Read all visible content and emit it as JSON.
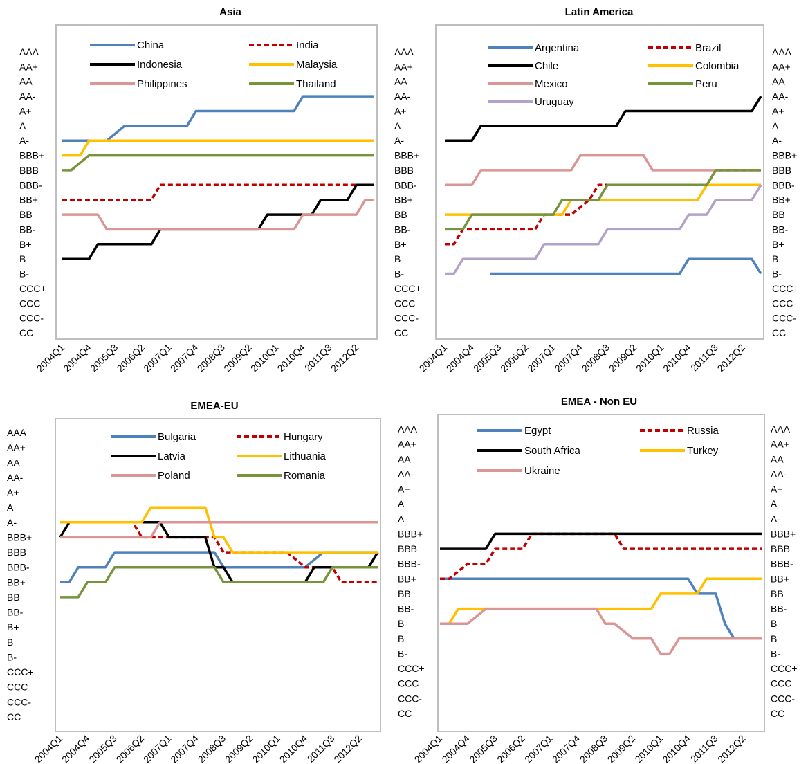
{
  "figure": {
    "rating_scale": [
      "AAA",
      "AA+",
      "AA",
      "AA-",
      "A+",
      "A",
      "A-",
      "BBB+",
      "BBB",
      "BBB-",
      "BB+",
      "BB",
      "BB-",
      "B+",
      "B",
      "B-",
      "CCC+",
      "CCC",
      "CCC-",
      "CC"
    ],
    "x_tick_labels": [
      "2004Q1",
      "2004Q4",
      "2005Q3",
      "2006Q2",
      "2007Q1",
      "2007Q4",
      "2008Q3",
      "2009Q2",
      "2010Q1",
      "2010Q4",
      "2011Q3",
      "2012Q2"
    ]
  },
  "chart_data": [
    {
      "type": "line",
      "title": "Asia",
      "x_start": "2004Q1",
      "x_end": "2012Q4",
      "y_axis": "rating (AAA top, CC bottom)",
      "y_tick_side": "left",
      "legend_columns": 2,
      "series": [
        {
          "name": "China",
          "color": "#4f81bd",
          "dash": "solid",
          "points": [
            [
              "2004Q1",
              "A-"
            ],
            [
              "2005Q2",
              "A-"
            ],
            [
              "2005Q4",
              "A"
            ],
            [
              "2007Q3",
              "A"
            ],
            [
              "2007Q4",
              "A+"
            ],
            [
              "2010Q3",
              "A+"
            ],
            [
              "2010Q4",
              "AA-"
            ],
            [
              "2012Q4",
              "AA-"
            ]
          ]
        },
        {
          "name": "India",
          "color": "#c00000",
          "dash": "dashed",
          "points": [
            [
              "2004Q1",
              "BB+"
            ],
            [
              "2006Q3",
              "BB+"
            ],
            [
              "2006Q4",
              "BBB-"
            ],
            [
              "2012Q4",
              "BBB-"
            ]
          ]
        },
        {
          "name": "Indonesia",
          "color": "#000000",
          "dash": "solid",
          "points": [
            [
              "2004Q1",
              "B"
            ],
            [
              "2004Q4",
              "B"
            ],
            [
              "2005Q1",
              "B+"
            ],
            [
              "2006Q3",
              "B+"
            ],
            [
              "2006Q4",
              "BB-"
            ],
            [
              "2009Q3",
              "BB-"
            ],
            [
              "2009Q4",
              "BB"
            ],
            [
              "2011Q1",
              "BB"
            ],
            [
              "2011Q2",
              "BB+"
            ],
            [
              "2012Q1",
              "BB+"
            ],
            [
              "2012Q2",
              "BBB-"
            ],
            [
              "2012Q4",
              "BBB-"
            ]
          ]
        },
        {
          "name": "Malaysia",
          "color": "#ffc000",
          "dash": "solid",
          "points": [
            [
              "2004Q1",
              "BBB+"
            ],
            [
              "2004Q3",
              "BBB+"
            ],
            [
              "2004Q4",
              "A-"
            ],
            [
              "2012Q4",
              "A-"
            ]
          ]
        },
        {
          "name": "Philippines",
          "color": "#d99694",
          "dash": "solid",
          "points": [
            [
              "2004Q1",
              "BB"
            ],
            [
              "2005Q1",
              "BB"
            ],
            [
              "2005Q2",
              "BB-"
            ],
            [
              "2010Q3",
              "BB-"
            ],
            [
              "2010Q4",
              "BB"
            ],
            [
              "2012Q2",
              "BB"
            ],
            [
              "2012Q3",
              "BB+"
            ],
            [
              "2012Q4",
              "BB+"
            ]
          ]
        },
        {
          "name": "Thailand",
          "color": "#77933c",
          "dash": "solid",
          "points": [
            [
              "2004Q1",
              "BBB"
            ],
            [
              "2004Q2",
              "BBB"
            ],
            [
              "2004Q4",
              "BBB+"
            ],
            [
              "2012Q4",
              "BBB+"
            ]
          ]
        }
      ]
    },
    {
      "type": "line",
      "title": "Latin America",
      "x_start": "2004Q1",
      "x_end": "2012Q4",
      "y_axis": "rating (AAA top, CC bottom)",
      "y_tick_side": "both",
      "legend_columns": 2,
      "series": [
        {
          "name": "Argentina",
          "color": "#4f81bd",
          "dash": "solid",
          "points": [
            [
              "2005Q2",
              "B-"
            ],
            [
              "2010Q3",
              "B-"
            ],
            [
              "2010Q4",
              "B"
            ],
            [
              "2012Q3",
              "B"
            ],
            [
              "2012Q4",
              "B-"
            ]
          ]
        },
        {
          "name": "Brazil",
          "color": "#c00000",
          "dash": "dashed",
          "points": [
            [
              "2004Q1",
              "B+"
            ],
            [
              "2004Q2",
              "B+"
            ],
            [
              "2004Q3",
              "BB-"
            ],
            [
              "2006Q3",
              "BB-"
            ],
            [
              "2006Q4",
              "BB"
            ],
            [
              "2007Q2",
              "BB"
            ],
            [
              "2007Q3",
              "BB"
            ],
            [
              "2008Q1",
              "BB+"
            ],
            [
              "2008Q2",
              "BBB-"
            ],
            [
              "2011Q2",
              "BBB-"
            ],
            [
              "2011Q3",
              "BBB"
            ],
            [
              "2012Q4",
              "BBB"
            ]
          ]
        },
        {
          "name": "Chile",
          "color": "#000000",
          "dash": "solid",
          "points": [
            [
              "2004Q1",
              "A-"
            ],
            [
              "2004Q4",
              "A-"
            ],
            [
              "2005Q1",
              "A"
            ],
            [
              "2008Q4",
              "A"
            ],
            [
              "2009Q1",
              "A+"
            ],
            [
              "2012Q3",
              "A+"
            ],
            [
              "2012Q4",
              "AA-"
            ]
          ]
        },
        {
          "name": "Colombia",
          "color": "#ffc000",
          "dash": "solid",
          "points": [
            [
              "2004Q1",
              "BB"
            ],
            [
              "2007Q2",
              "BB"
            ],
            [
              "2007Q3",
              "BB+"
            ],
            [
              "2011Q1",
              "BB+"
            ],
            [
              "2011Q2",
              "BBB-"
            ],
            [
              "2012Q4",
              "BBB-"
            ]
          ]
        },
        {
          "name": "Mexico",
          "color": "#d99694",
          "dash": "solid",
          "points": [
            [
              "2004Q1",
              "BBB-"
            ],
            [
              "2004Q4",
              "BBB-"
            ],
            [
              "2005Q1",
              "BBB"
            ],
            [
              "2007Q3",
              "BBB"
            ],
            [
              "2007Q4",
              "BBB+"
            ],
            [
              "2009Q3",
              "BBB+"
            ],
            [
              "2009Q4",
              "BBB"
            ],
            [
              "2012Q4",
              "BBB"
            ]
          ]
        },
        {
          "name": "Peru",
          "color": "#77933c",
          "dash": "solid",
          "points": [
            [
              "2004Q1",
              "BB-"
            ],
            [
              "2004Q3",
              "BB-"
            ],
            [
              "2004Q4",
              "BB"
            ],
            [
              "2007Q1",
              "BB"
            ],
            [
              "2007Q2",
              "BB+"
            ],
            [
              "2008Q2",
              "BB+"
            ],
            [
              "2008Q3",
              "BBB-"
            ],
            [
              "2011Q2",
              "BBB-"
            ],
            [
              "2011Q3",
              "BBB"
            ],
            [
              "2012Q4",
              "BBB"
            ]
          ]
        },
        {
          "name": "Uruguay",
          "color": "#b3a2c7",
          "dash": "solid",
          "points": [
            [
              "2004Q1",
              "B-"
            ],
            [
              "2004Q2",
              "B-"
            ],
            [
              "2004Q3",
              "B"
            ],
            [
              "2006Q3",
              "B"
            ],
            [
              "2006Q4",
              "B+"
            ],
            [
              "2008Q2",
              "B+"
            ],
            [
              "2008Q3",
              "BB-"
            ],
            [
              "2010Q3",
              "BB-"
            ],
            [
              "2010Q4",
              "BB"
            ],
            [
              "2011Q2",
              "BB"
            ],
            [
              "2011Q3",
              "BB+"
            ],
            [
              "2012Q3",
              "BB+"
            ],
            [
              "2012Q4",
              "BBB-"
            ]
          ]
        }
      ]
    },
    {
      "type": "line",
      "title": "EMEA-EU",
      "x_start": "2004Q1",
      "x_end": "2012Q4",
      "y_axis": "rating (AAA top, CC bottom)",
      "y_tick_side": "left",
      "legend_columns": 2,
      "series": [
        {
          "name": "Bulgaria",
          "color": "#4f81bd",
          "dash": "solid",
          "points": [
            [
              "2004Q1",
              "BB+"
            ],
            [
              "2004Q2",
              "BB+"
            ],
            [
              "2004Q3",
              "BBB-"
            ],
            [
              "2005Q2",
              "BBB-"
            ],
            [
              "2005Q3",
              "BBB"
            ],
            [
              "2008Q2",
              "BBB"
            ],
            [
              "2008Q3",
              "BBB-"
            ],
            [
              "2010Q4",
              "BBB-"
            ],
            [
              "2011Q2",
              "BBB"
            ],
            [
              "2012Q4",
              "BBB"
            ]
          ]
        },
        {
          "name": "Hungary",
          "color": "#c00000",
          "dash": "dashed",
          "points": [
            [
              "2004Q1",
              "A-"
            ],
            [
              "2006Q1",
              "A-"
            ],
            [
              "2006Q2",
              "BBB+"
            ],
            [
              "2008Q2",
              "BBB+"
            ],
            [
              "2008Q3",
              "BBB"
            ],
            [
              "2010Q2",
              "BBB"
            ],
            [
              "2010Q4",
              "BBB-"
            ],
            [
              "2011Q3",
              "BBB-"
            ],
            [
              "2011Q4",
              "BB+"
            ],
            [
              "2012Q4",
              "BB+"
            ]
          ]
        },
        {
          "name": "Latvia",
          "color": "#000000",
          "dash": "solid",
          "points": [
            [
              "2004Q1",
              "BBB+"
            ],
            [
              "2004Q2",
              "A-"
            ],
            [
              "2006Q4",
              "A-"
            ],
            [
              "2007Q1",
              "BBB+"
            ],
            [
              "2008Q1",
              "BBB+"
            ],
            [
              "2008Q2",
              "BBB-"
            ],
            [
              "2008Q3",
              "BBB-"
            ],
            [
              "2008Q4",
              "BB+"
            ],
            [
              "2010Q4",
              "BB+"
            ],
            [
              "2011Q1",
              "BBB-"
            ],
            [
              "2012Q3",
              "BBB-"
            ],
            [
              "2012Q4",
              "BBB"
            ]
          ]
        },
        {
          "name": "Lithuania",
          "color": "#ffc000",
          "dash": "solid",
          "points": [
            [
              "2004Q1",
              "A-"
            ],
            [
              "2006Q2",
              "A-"
            ],
            [
              "2006Q3",
              "A"
            ],
            [
              "2008Q1",
              "A"
            ],
            [
              "2008Q2",
              "BBB+"
            ],
            [
              "2008Q3",
              "BBB+"
            ],
            [
              "2008Q4",
              "BBB"
            ],
            [
              "2012Q4",
              "BBB"
            ]
          ]
        },
        {
          "name": "Poland",
          "color": "#d99694",
          "dash": "solid",
          "points": [
            [
              "2004Q1",
              "BBB+"
            ],
            [
              "2006Q3",
              "BBB+"
            ],
            [
              "2006Q4",
              "A-"
            ],
            [
              "2012Q4",
              "A-"
            ]
          ]
        },
        {
          "name": "Romania",
          "color": "#77933c",
          "dash": "solid",
          "points": [
            [
              "2004Q1",
              "BB"
            ],
            [
              "2004Q3",
              "BB"
            ],
            [
              "2004Q4",
              "BB+"
            ],
            [
              "2005Q2",
              "BB+"
            ],
            [
              "2005Q3",
              "BBB-"
            ],
            [
              "2008Q2",
              "BBB-"
            ],
            [
              "2008Q3",
              "BB+"
            ],
            [
              "2011Q2",
              "BB+"
            ],
            [
              "2011Q3",
              "BBB-"
            ],
            [
              "2012Q4",
              "BBB-"
            ]
          ]
        }
      ]
    },
    {
      "type": "line",
      "title": "EMEA - Non EU",
      "x_start": "2004Q1",
      "x_end": "2012Q4",
      "y_axis": "rating (AAA top, CC bottom)",
      "y_tick_side": "both",
      "legend_columns": 2,
      "series": [
        {
          "name": "Egypt",
          "color": "#4f81bd",
          "dash": "solid",
          "points": [
            [
              "2004Q1",
              "BB+"
            ],
            [
              "2010Q4",
              "BB+"
            ],
            [
              "2011Q1",
              "BB"
            ],
            [
              "2011Q3",
              "BB"
            ],
            [
              "2011Q4",
              "B+"
            ],
            [
              "2012Q1",
              "B"
            ],
            [
              "2012Q4",
              "B"
            ]
          ]
        },
        {
          "name": "Russia",
          "color": "#c00000",
          "dash": "dashed",
          "points": [
            [
              "2004Q1",
              "BB+"
            ],
            [
              "2004Q2",
              "BB+"
            ],
            [
              "2004Q4",
              "BBB-"
            ],
            [
              "2005Q2",
              "BBB-"
            ],
            [
              "2005Q3",
              "BBB"
            ],
            [
              "2006Q2",
              "BBB"
            ],
            [
              "2006Q3",
              "BBB+"
            ],
            [
              "2008Q4",
              "BBB+"
            ],
            [
              "2009Q1",
              "BBB"
            ],
            [
              "2012Q4",
              "BBB"
            ]
          ]
        },
        {
          "name": "South Africa",
          "color": "#000000",
          "dash": "solid",
          "points": [
            [
              "2004Q1",
              "BBB"
            ],
            [
              "2005Q2",
              "BBB"
            ],
            [
              "2005Q3",
              "BBB+"
            ],
            [
              "2012Q4",
              "BBB+"
            ]
          ]
        },
        {
          "name": "Turkey",
          "color": "#ffc000",
          "dash": "solid",
          "points": [
            [
              "2004Q1",
              "B+"
            ],
            [
              "2004Q2",
              "B+"
            ],
            [
              "2004Q3",
              "BB-"
            ],
            [
              "2009Q4",
              "BB-"
            ],
            [
              "2010Q1",
              "BB"
            ],
            [
              "2011Q1",
              "BB"
            ],
            [
              "2011Q2",
              "BB+"
            ],
            [
              "2012Q4",
              "BB+"
            ]
          ]
        },
        {
          "name": "Ukraine",
          "color": "#d99694",
          "dash": "solid",
          "points": [
            [
              "2004Q1",
              "B+"
            ],
            [
              "2004Q4",
              "B+"
            ],
            [
              "2005Q2",
              "BB-"
            ],
            [
              "2008Q2",
              "BB-"
            ],
            [
              "2008Q3",
              "B+"
            ],
            [
              "2008Q4",
              "B+"
            ],
            [
              "2009Q2",
              "B"
            ],
            [
              "2009Q4",
              "B"
            ],
            [
              "2010Q1",
              "B-"
            ],
            [
              "2010Q2",
              "B-"
            ],
            [
              "2010Q3",
              "B"
            ],
            [
              "2012Q4",
              "B"
            ]
          ]
        }
      ]
    }
  ]
}
